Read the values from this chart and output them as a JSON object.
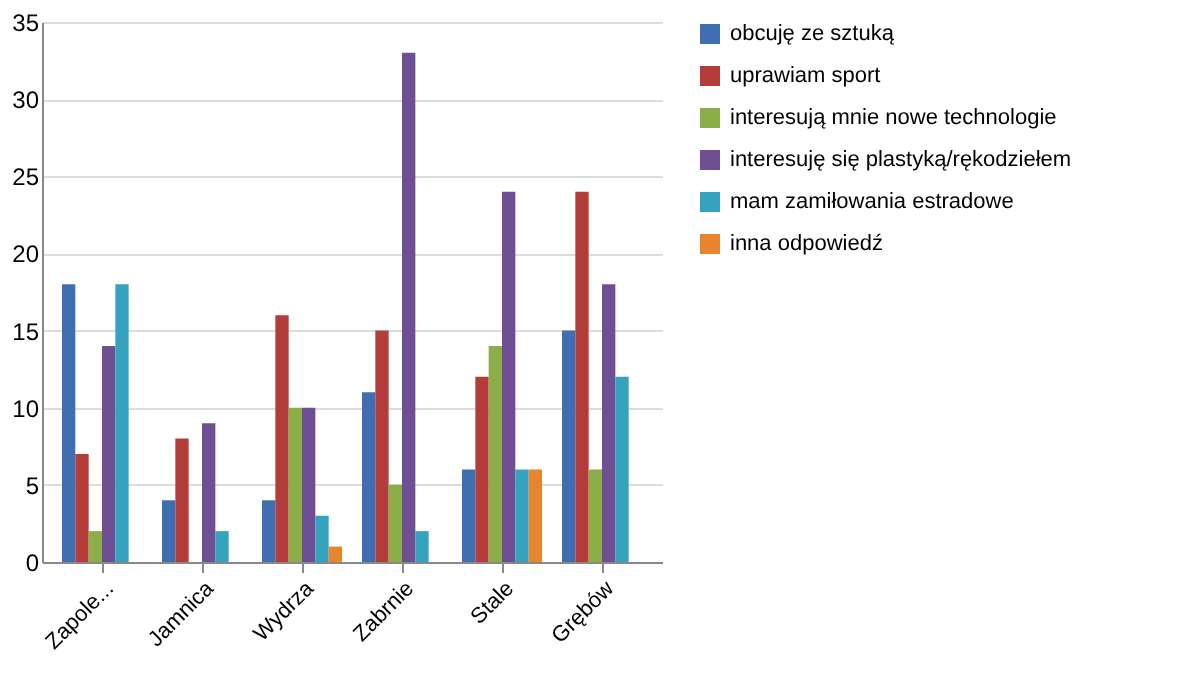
{
  "chart_data": {
    "type": "bar",
    "categories": [
      "Zapole...",
      "Jamnica",
      "Wydrza",
      "Zabrnie",
      "Stale",
      "Grębów"
    ],
    "series": [
      {
        "name": "obcuję ze sztuką",
        "color": "#3f6fb0",
        "values": [
          18,
          4,
          4,
          11,
          6,
          15
        ]
      },
      {
        "name": "uprawiam sport",
        "color": "#b43c3a",
        "values": [
          7,
          8,
          16,
          15,
          12,
          24
        ]
      },
      {
        "name": "interesują mnie nowe technologie",
        "color": "#8cae48",
        "values": [
          2,
          0,
          10,
          5,
          14,
          6
        ]
      },
      {
        "name": "interesuję się plastyką/rękodziełem",
        "color": "#6e4f94",
        "values": [
          14,
          9,
          10,
          33,
          24,
          18
        ]
      },
      {
        "name": "mam zamiłowania estradowe",
        "color": "#35a3bd",
        "values": [
          18,
          2,
          3,
          2,
          6,
          12
        ]
      },
      {
        "name": "inna odpowiedź",
        "color": "#e8832e",
        "values": [
          0,
          0,
          1,
          0,
          6,
          0
        ]
      }
    ],
    "ylim": [
      0,
      35
    ],
    "yticks": [
      0,
      5,
      10,
      15,
      20,
      25,
      30,
      35
    ],
    "grid": "y",
    "legend": "right"
  }
}
